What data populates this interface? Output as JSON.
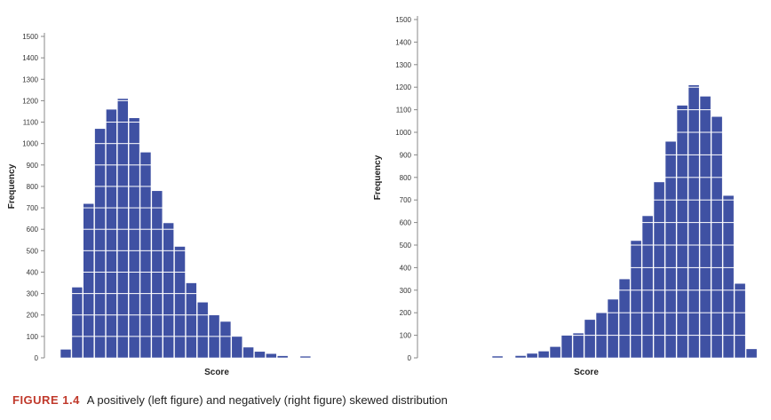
{
  "chart_data": [
    {
      "type": "bar",
      "xlabel": "Score",
      "ylabel": "Frequency",
      "ylim": [
        0,
        1500
      ],
      "yticks": [
        0,
        100,
        200,
        300,
        400,
        500,
        600,
        700,
        800,
        900,
        1000,
        1100,
        1200,
        1300,
        1400,
        1500
      ],
      "grid": false,
      "bar_color": "#3f51a3",
      "values": [
        40,
        330,
        720,
        1070,
        1160,
        1210,
        1120,
        960,
        780,
        630,
        520,
        350,
        260,
        200,
        170,
        100,
        50,
        30,
        20,
        10,
        0,
        8
      ]
    },
    {
      "type": "bar",
      "xlabel": "Score",
      "ylabel": "Frequency",
      "ylim": [
        0,
        1500
      ],
      "yticks": [
        0,
        100,
        200,
        300,
        400,
        500,
        600,
        700,
        800,
        900,
        1000,
        1100,
        1200,
        1300,
        1400,
        1500
      ],
      "grid": false,
      "bar_color": "#3f51a3",
      "values": [
        8,
        0,
        10,
        20,
        30,
        50,
        100,
        110,
        170,
        200,
        260,
        350,
        520,
        630,
        780,
        960,
        1120,
        1210,
        1160,
        1070,
        720,
        330,
        40
      ]
    }
  ],
  "caption": {
    "label": "FIGURE 1.4",
    "text": "A positively (left figure) and negatively (right figure) skewed distribution"
  }
}
